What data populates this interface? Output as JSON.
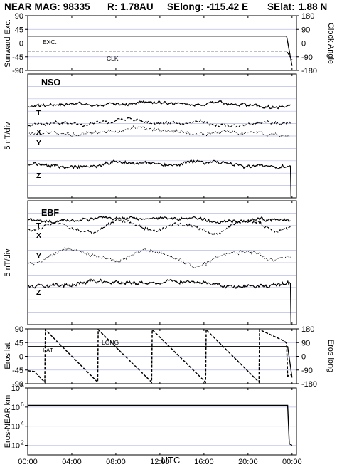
{
  "header": {
    "mission": "NEAR MAG: 98335",
    "range": "R: 1.78AU",
    "selong": "SElong: -115.42 E",
    "selat": "SElat:",
    "selat_value": "1.88 N"
  },
  "chart_data": [
    {
      "type": "line",
      "panel": "exc-clk",
      "ylabel_left": "Sunward Exc.",
      "ylabel_right": "Clock Angle",
      "yticks_left": [
        "90",
        "45",
        "0",
        "-45",
        "-90"
      ],
      "yticks_right": [
        "180",
        "90",
        "0",
        "-90",
        "-180"
      ],
      "ylim_left": [
        -90,
        90
      ],
      "ylim_right": [
        -180,
        180
      ],
      "grid": "horizontal",
      "series": [
        {
          "name": "EXC.",
          "axis": "left",
          "style": "solid",
          "x": [
            0,
            22.5,
            23.5,
            24
          ],
          "y": [
            23,
            23,
            23,
            -75
          ]
        },
        {
          "name": "CLK",
          "axis": "right",
          "style": "dashed",
          "x": [
            0,
            23.5,
            24
          ],
          "y": [
            -52,
            -52,
            -110
          ]
        }
      ]
    },
    {
      "type": "line",
      "panel": "NSO",
      "title": "NSO",
      "ylabel": "5 nT/div",
      "grid": "horizontal",
      "traces": [
        "T",
        "X",
        "Y",
        "Z"
      ],
      "trace_styles": [
        "solid",
        "dashed",
        "dotted",
        "solid"
      ],
      "trace_levels_div": [
        7.55,
        6.05,
        5.3,
        2.7
      ]
    },
    {
      "type": "line",
      "panel": "EBF",
      "title": "EBF",
      "ylabel": "5 nT/div",
      "grid": "horizontal",
      "traces": [
        "T",
        "X",
        "Y",
        "Z"
      ],
      "trace_styles": [
        "solid",
        "dashed",
        "dotted",
        "solid"
      ],
      "trace_levels_div": [
        8.5,
        7.9,
        5.5,
        3.3
      ]
    },
    {
      "type": "line",
      "panel": "eros-position",
      "ylabel_left": "Eros lat",
      "ylabel_right": "Eros long",
      "yticks_left": [
        "90",
        "45",
        "0",
        "-45",
        "-90"
      ],
      "yticks_right": [
        "180",
        "90",
        "0",
        "-90",
        "-180"
      ],
      "ylim_left": [
        -90,
        90
      ],
      "ylim_right": [
        -180,
        180
      ],
      "grid": "horizontal",
      "series": [
        {
          "name": "LAT",
          "axis": "left",
          "style": "solid",
          "x": [
            0,
            23.6,
            24
          ],
          "y": [
            32,
            32,
            -70
          ]
        },
        {
          "name": "LONG",
          "axis": "right",
          "style": "dashed",
          "x": [
            0,
            0.6,
            1.55,
            1.6,
            6.35,
            6.4,
            11.25,
            11.3,
            16.15,
            16.2,
            21.0,
            21.05,
            23.3,
            23.5,
            23.6,
            24
          ],
          "y": [
            -95,
            -100,
            -170,
            175,
            -170,
            175,
            -170,
            175,
            -170,
            175,
            -170,
            175,
            100,
            85,
            -130,
            -120
          ]
        }
      ]
    },
    {
      "type": "line",
      "panel": "eros-near-range",
      "ylabel": "Eros-NEAR km",
      "yscale": "log",
      "ylim": [
        10,
        100000000
      ],
      "yticks": [
        "10",
        "10",
        "10",
        "10"
      ],
      "ytick_exponents": [
        "8",
        "6",
        "4",
        "2"
      ],
      "grid": "horizontal",
      "series": [
        {
          "name": "range",
          "style": "solid",
          "x": [
            0,
            23.6,
            23.75,
            24
          ],
          "y": [
            1500000,
            1500000,
            150,
            100
          ]
        }
      ]
    }
  ],
  "x_axis": {
    "label": "UTC",
    "ticks": [
      "00:00",
      "04:00",
      "08:00",
      "12:00",
      "16:00",
      "20:00",
      "00:00"
    ],
    "ticks_hours": [
      0,
      4,
      8,
      12,
      16,
      20,
      24
    ],
    "xlim": [
      0,
      24.4
    ]
  }
}
